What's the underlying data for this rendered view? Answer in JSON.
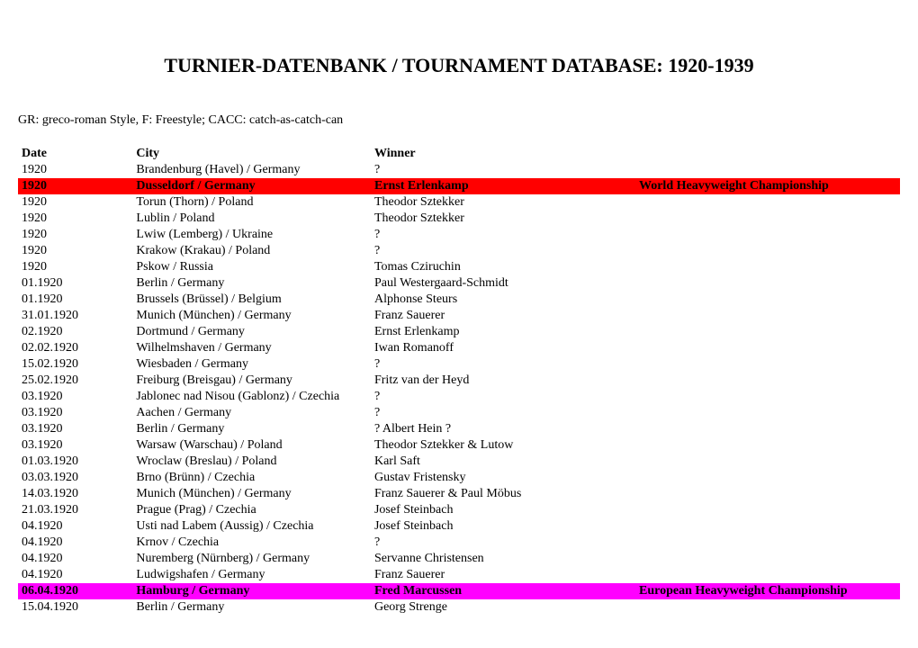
{
  "title": "TURNIER-DATENBANK / TOURNAMENT DATABASE: 1920-1939",
  "legend": "GR: greco-roman Style, F: Freestyle; CACC: catch-as-catch-can",
  "columns": {
    "date": "Date",
    "city": "City",
    "winner": "Winner",
    "note": ""
  },
  "highlight_colors": {
    "red": "#ff0000",
    "magenta": "#ff00ff"
  },
  "rows": [
    {
      "date": "1920",
      "city": "Brandenburg (Havel) / Germany",
      "winner": "?",
      "note": "",
      "highlight": ""
    },
    {
      "date": "1920",
      "city": "Dusseldorf / Germany",
      "winner": "Ernst Erlenkamp",
      "note": "World Heavyweight Championship",
      "highlight": "red"
    },
    {
      "date": "1920",
      "city": "Torun (Thorn) / Poland",
      "winner": "Theodor Sztekker",
      "note": "",
      "highlight": ""
    },
    {
      "date": "1920",
      "city": "Lublin / Poland",
      "winner": "Theodor Sztekker",
      "note": "",
      "highlight": ""
    },
    {
      "date": "1920",
      "city": "Lwiw (Lemberg) / Ukraine",
      "winner": "?",
      "note": "",
      "highlight": ""
    },
    {
      "date": "1920",
      "city": "Krakow (Krakau) / Poland",
      "winner": "?",
      "note": "",
      "highlight": ""
    },
    {
      "date": "1920",
      "city": "Pskow / Russia",
      "winner": "Tomas Cziruchin",
      "note": "",
      "highlight": ""
    },
    {
      "date": "01.1920",
      "city": "Berlin / Germany",
      "winner": "Paul Westergaard-Schmidt",
      "note": "",
      "highlight": ""
    },
    {
      "date": "01.1920",
      "city": "Brussels (Brüssel) / Belgium",
      "winner": "Alphonse Steurs",
      "note": "",
      "highlight": ""
    },
    {
      "date": "31.01.1920",
      "city": "Munich (München) / Germany",
      "winner": "Franz Sauerer",
      "note": "",
      "highlight": ""
    },
    {
      "date": "02.1920",
      "city": "Dortmund / Germany",
      "winner": "Ernst Erlenkamp",
      "note": "",
      "highlight": ""
    },
    {
      "date": "02.02.1920",
      "city": "Wilhelmshaven / Germany",
      "winner": "Iwan Romanoff",
      "note": "",
      "highlight": ""
    },
    {
      "date": "15.02.1920",
      "city": "Wiesbaden / Germany",
      "winner": "?",
      "note": "",
      "highlight": ""
    },
    {
      "date": "25.02.1920",
      "city": "Freiburg (Breisgau) / Germany",
      "winner": "Fritz van der Heyd",
      "note": "",
      "highlight": ""
    },
    {
      "date": "03.1920",
      "city": "Jablonec nad Nisou (Gablonz) / Czechia",
      "winner": "?",
      "note": "",
      "highlight": ""
    },
    {
      "date": "03.1920",
      "city": "Aachen / Germany",
      "winner": "?",
      "note": "",
      "highlight": ""
    },
    {
      "date": "03.1920",
      "city": "Berlin / Germany",
      "winner": "? Albert Hein ?",
      "note": "",
      "highlight": ""
    },
    {
      "date": "03.1920",
      "city": "Warsaw (Warschau) / Poland",
      "winner": "Theodor Sztekker & Lutow",
      "note": "",
      "highlight": ""
    },
    {
      "date": "01.03.1920",
      "city": "Wroclaw (Breslau) / Poland",
      "winner": "Karl Saft",
      "note": "",
      "highlight": ""
    },
    {
      "date": "03.03.1920",
      "city": "Brno (Brünn) / Czechia",
      "winner": "Gustav Fristensky",
      "note": "",
      "highlight": ""
    },
    {
      "date": "14.03.1920",
      "city": "Munich (München) / Germany",
      "winner": "Franz Sauerer & Paul Möbus",
      "note": "",
      "highlight": ""
    },
    {
      "date": "21.03.1920",
      "city": "Prague (Prag) / Czechia",
      "winner": "Josef Steinbach",
      "note": "",
      "highlight": ""
    },
    {
      "date": "04.1920",
      "city": "Usti nad Labem (Aussig) / Czechia",
      "winner": "Josef Steinbach",
      "note": "",
      "highlight": ""
    },
    {
      "date": "04.1920",
      "city": "Krnov / Czechia",
      "winner": "?",
      "note": "",
      "highlight": ""
    },
    {
      "date": "04.1920",
      "city": "Nuremberg (Nürnberg) / Germany",
      "winner": "Servanne Christensen",
      "note": "",
      "highlight": ""
    },
    {
      "date": "04.1920",
      "city": "Ludwigshafen / Germany",
      "winner": "Franz Sauerer",
      "note": "",
      "highlight": ""
    },
    {
      "date": "06.04.1920",
      "city": "Hamburg / Germany",
      "winner": "Fred Marcussen",
      "note": "European Heavyweight Championship",
      "highlight": "magenta"
    },
    {
      "date": "15.04.1920",
      "city": "Berlin / Germany",
      "winner": "Georg Strenge",
      "note": "",
      "highlight": ""
    }
  ]
}
